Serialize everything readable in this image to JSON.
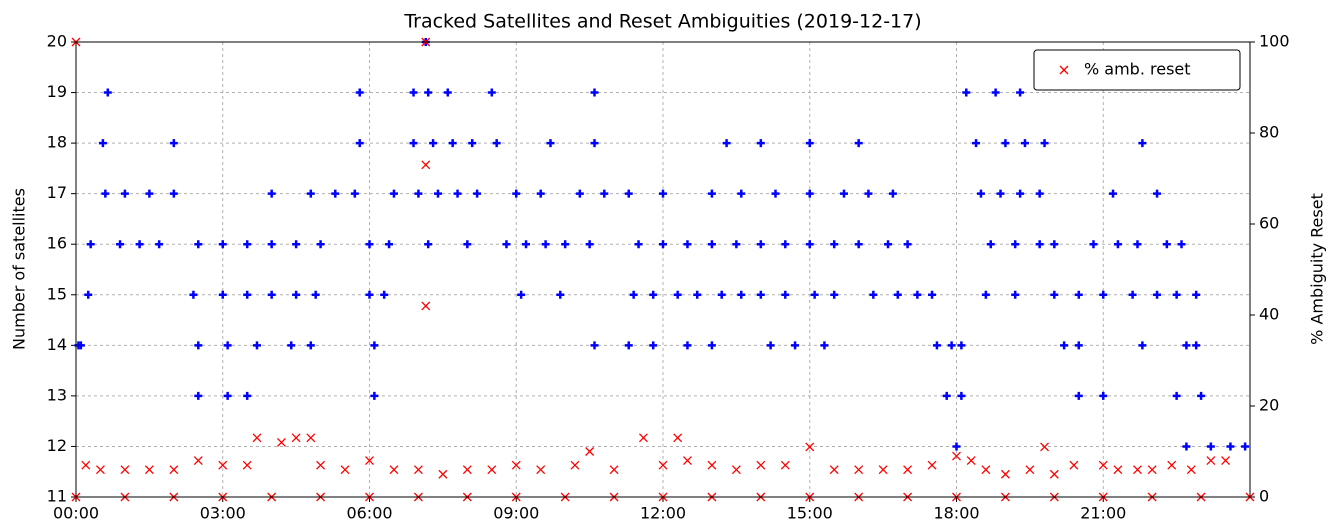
{
  "chart_data": {
    "type": "scatter",
    "title": "Tracked Satellites and Reset Ambiguities (2019-12-17)",
    "y_label": "Number of satellites",
    "y2_label": "% Ambiguity Reset",
    "xlim": [
      0,
      24
    ],
    "xticks": [
      {
        "value": 0,
        "label": "00:00"
      },
      {
        "value": 3,
        "label": "03:00"
      },
      {
        "value": 6,
        "label": "06:00"
      },
      {
        "value": 9,
        "label": "09:00"
      },
      {
        "value": 12,
        "label": "12:00"
      },
      {
        "value": 15,
        "label": "15:00"
      },
      {
        "value": 18,
        "label": "18:00"
      },
      {
        "value": 21,
        "label": "21:00"
      }
    ],
    "ylim": [
      11,
      20
    ],
    "yticks": [
      11,
      12,
      13,
      14,
      15,
      16,
      17,
      18,
      19,
      20
    ],
    "y2lim": [
      0,
      100
    ],
    "y2ticks": [
      0,
      20,
      40,
      60,
      80,
      100
    ],
    "grid": true,
    "legend": "upper right",
    "series": [
      {
        "color": "#0000ff",
        "marker": "+",
        "x": [
          0.05,
          0.1,
          0.25,
          0.3,
          0.55,
          0.65,
          0.6,
          1.0,
          1.5,
          2.0,
          0.9,
          1.3,
          1.7,
          2.0,
          2.5,
          3.0,
          3.5,
          4.0,
          4.5,
          5.0,
          2.4,
          3.0,
          3.5,
          4.0,
          4.5,
          4.9,
          2.5,
          3.1,
          3.7,
          4.4,
          4.8,
          2.5,
          3.1,
          3.5,
          4.0,
          4.8,
          5.3,
          5.7,
          5.8,
          5.8,
          6.0,
          6.4,
          6.0,
          6.3,
          6.1,
          6.1,
          6.5,
          7.0,
          7.4,
          7.8,
          8.2,
          6.9,
          7.3,
          7.7,
          8.1,
          8.6,
          6.9,
          7.2,
          7.6,
          8.5,
          7.15,
          7.2,
          8.0,
          8.8,
          9.2,
          9.6,
          10.0,
          10.5,
          9.1,
          9.9,
          9.0,
          9.5,
          10.3,
          10.8,
          11.3,
          9.7,
          10.6,
          10.6,
          10.6,
          11.4,
          11.8,
          12.3,
          12.7,
          13.2,
          13.6,
          14.0,
          14.5,
          15.1,
          15.5,
          11.5,
          12.0,
          12.5,
          13.0,
          13.5,
          14.0,
          14.5,
          15.0,
          15.5,
          16.0,
          16.6,
          17.0,
          12.0,
          13.0,
          13.6,
          14.3,
          15.0,
          15.7,
          16.2,
          16.7,
          13.3,
          14.0,
          15.0,
          16.0,
          11.3,
          11.8,
          12.5,
          13.0,
          14.2,
          14.7,
          15.3,
          16.3,
          16.8,
          17.2,
          17.5,
          17.6,
          17.9,
          18.1,
          17.8,
          18.1,
          18.0,
          18.5,
          18.9,
          19.3,
          19.7,
          18.4,
          19.0,
          19.4,
          19.8,
          18.2,
          18.8,
          19.3,
          18.7,
          19.2,
          19.7,
          20.0,
          18.6,
          19.2,
          20.0,
          20.5,
          21.0,
          21.6,
          22.1,
          22.5,
          22.9,
          20.2,
          20.5,
          21.8,
          22.7,
          22.9,
          20.5,
          21.0,
          22.5,
          23.0,
          20.8,
          21.3,
          21.7,
          22.3,
          22.6,
          21.2,
          22.1,
          21.8,
          22.7,
          23.2,
          23.6,
          23.9
        ],
        "values": [
          14,
          14,
          15,
          16,
          18,
          19,
          17,
          17,
          17,
          17,
          16,
          16,
          16,
          18,
          16,
          16,
          16,
          16,
          16,
          16,
          15,
          15,
          15,
          15,
          15,
          15,
          14,
          14,
          14,
          14,
          14,
          13,
          13,
          13,
          17,
          17,
          17,
          17,
          18,
          19,
          16,
          16,
          15,
          15,
          14,
          13,
          17,
          17,
          17,
          17,
          17,
          18,
          18,
          18,
          18,
          18,
          19,
          19,
          19,
          19,
          20,
          16,
          16,
          16,
          16,
          16,
          16,
          16,
          15,
          15,
          17,
          17,
          17,
          17,
          17,
          18,
          18,
          19,
          14,
          15,
          15,
          15,
          15,
          15,
          15,
          15,
          15,
          15,
          15,
          16,
          16,
          16,
          16,
          16,
          16,
          16,
          16,
          16,
          16,
          16,
          16,
          17,
          17,
          17,
          17,
          17,
          17,
          17,
          17,
          18,
          18,
          18,
          18,
          14,
          14,
          14,
          14,
          14,
          14,
          14,
          15,
          15,
          15,
          15,
          14,
          14,
          14,
          13,
          13,
          12,
          17,
          17,
          17,
          17,
          18,
          18,
          18,
          18,
          19,
          19,
          19,
          16,
          16,
          16,
          16,
          15,
          15,
          15,
          15,
          15,
          15,
          15,
          15,
          15,
          14,
          14,
          14,
          14,
          14,
          13,
          13,
          13,
          13,
          16,
          16,
          16,
          16,
          16,
          17,
          17,
          18,
          12,
          12,
          12,
          12
        ]
      },
      {
        "name": "% amb. reset",
        "color": "#ff0000",
        "marker": "x",
        "axis": "y2",
        "x": [
          0.0,
          7.15,
          7.15,
          7.15,
          0.2,
          0.5,
          1.0,
          1.5,
          2.0,
          2.5,
          3.0,
          3.5,
          3.7,
          4.2,
          4.5,
          4.8,
          5.0,
          5.5,
          6.0,
          6.5,
          7.0,
          7.5,
          8.0,
          8.5,
          9.0,
          9.5,
          10.2,
          10.5,
          11.0,
          11.6,
          12.0,
          12.3,
          12.5,
          13.0,
          13.5,
          14.0,
          14.5,
          15.0,
          15.5,
          16.0,
          16.5,
          17.0,
          17.5,
          18.0,
          18.3,
          18.6,
          19.0,
          19.5,
          19.8,
          20.0,
          20.4,
          21.0,
          21.3,
          21.7,
          22.0,
          22.4,
          22.8,
          23.2,
          23.5,
          0,
          1,
          2,
          3,
          4,
          5,
          6,
          7,
          8,
          9,
          10,
          11,
          12,
          13,
          14,
          15,
          16,
          17,
          18,
          19,
          20,
          21,
          22,
          23,
          24
        ],
        "values": [
          100,
          100,
          73,
          42,
          7,
          6,
          6,
          6,
          6,
          8,
          7,
          7,
          13,
          12,
          13,
          13,
          7,
          6,
          8,
          6,
          6,
          5,
          6,
          6,
          7,
          6,
          7,
          10,
          6,
          13,
          7,
          13,
          8,
          7,
          6,
          7,
          7,
          11,
          6,
          6,
          6,
          6,
          7,
          9,
          8,
          6,
          5,
          6,
          11,
          5,
          7,
          7,
          6,
          6,
          6,
          7,
          6,
          8,
          8,
          0,
          0,
          0,
          0,
          0,
          0,
          0,
          0,
          0,
          0,
          0,
          0,
          0,
          0,
          0,
          0,
          0,
          0,
          0,
          0,
          0,
          0,
          0,
          0,
          0
        ]
      }
    ]
  }
}
